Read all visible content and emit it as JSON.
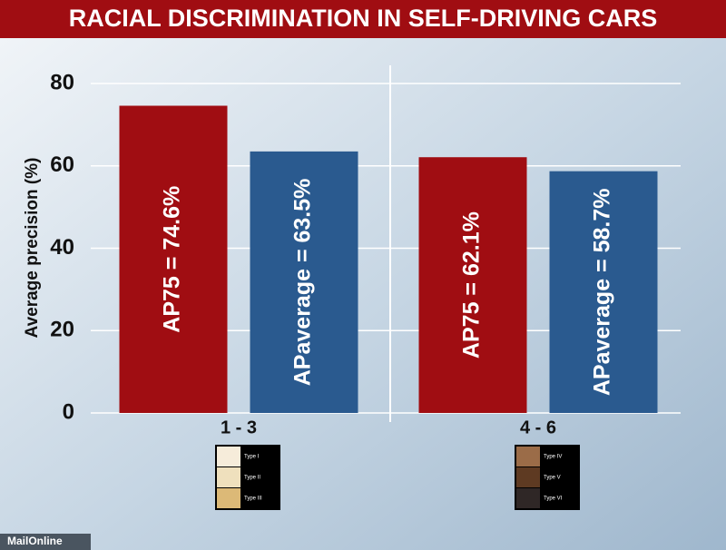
{
  "chart_data": {
    "type": "bar",
    "title": "RACIAL DISCRIMINATION IN SELF-DRIVING CARS",
    "y_label": "Average precision (%)",
    "categories": [
      "1 - 3",
      "4 - 6"
    ],
    "series": [
      {
        "color": "#a00d12",
        "values": [
          74.6,
          62.1
        ],
        "value_labels": [
          "AP75 = 74.6%",
          "AP75 = 62.1%"
        ]
      },
      {
        "color": "#2a5a8f",
        "values": [
          63.5,
          58.7
        ],
        "value_labels": [
          "APaverage = 63.5%",
          "APaverage = 58.7%"
        ]
      }
    ],
    "ylim": [
      0,
      80
    ],
    "yticks": [
      0,
      20,
      40,
      60,
      80
    ],
    "grid": true,
    "skin_types": [
      {
        "labels": [
          "Type I",
          "Type II",
          "Type III"
        ],
        "colors": [
          "#f6ecda",
          "#efe0bd",
          "#dcb977"
        ]
      },
      {
        "labels": [
          "Type IV",
          "Type V",
          "Type VI"
        ],
        "colors": [
          "#9b6c48",
          "#5e3a22",
          "#2f2726"
        ]
      }
    ],
    "source": "MailOnline"
  }
}
